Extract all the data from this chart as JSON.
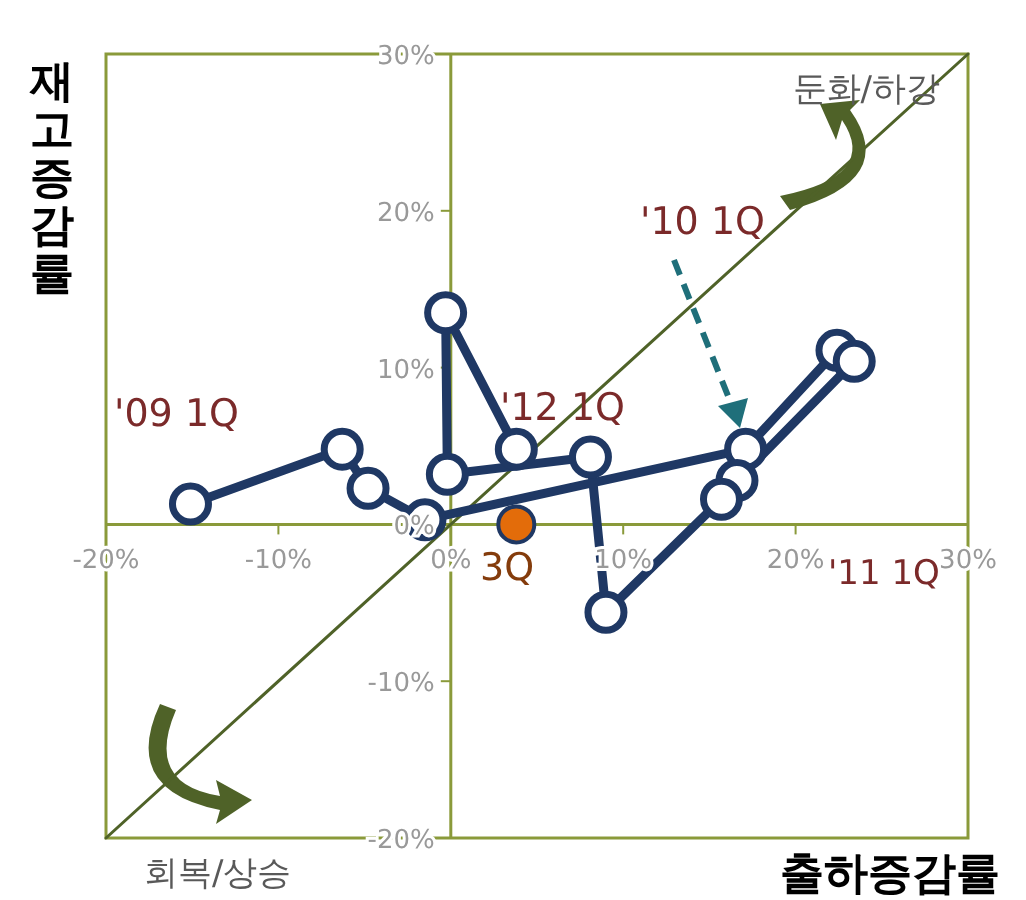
{
  "chart_data": {
    "type": "line",
    "xlabel": "출하증감률",
    "ylabel": "재고증감률",
    "xlim": [
      -20,
      30
    ],
    "ylim": [
      -20,
      30
    ],
    "xticks": [
      {
        "value": -20,
        "label": "-20%"
      },
      {
        "value": -10,
        "label": "-10%"
      },
      {
        "value": 0,
        "label": "0%"
      },
      {
        "value": 10,
        "label": "10%"
      },
      {
        "value": 20,
        "label": "20%"
      },
      {
        "value": 30,
        "label": "30%"
      }
    ],
    "yticks": [
      {
        "value": -20,
        "label": "-20%"
      },
      {
        "value": -10,
        "label": "-10%"
      },
      {
        "value": 0,
        "label": "0%"
      },
      {
        "value": 10,
        "label": "10%"
      },
      {
        "value": 20,
        "label": "20%"
      },
      {
        "value": 30,
        "label": "30%"
      }
    ],
    "grid": false,
    "series": [
      {
        "color": "#1f3864",
        "marker": "circle",
        "x": [
          -15.1,
          -6.3,
          -4.8,
          -1.5,
          17.1,
          22.4,
          23.4,
          16.6,
          15.7,
          9.0,
          8.1,
          -0.2,
          -0.3,
          3.8
        ],
        "values": [
          1.3,
          4.8,
          2.3,
          0.3,
          4.8,
          11.1,
          10.4,
          2.8,
          1.6,
          -5.6,
          4.3,
          3.2,
          13.5,
          4.8
        ]
      },
      {
        "type": "scatter",
        "color": "#e36c0a",
        "marker": "circle",
        "x": [
          3.8
        ],
        "values": [
          0
        ]
      },
      {
        "type": "line",
        "color": "#4f6228",
        "marker": "none",
        "x": [
          -20,
          30
        ],
        "values": [
          -20,
          30
        ]
      }
    ],
    "annotations": [
      "'09 1Q",
      "'10 1Q",
      "'11 1Q",
      "'12 1Q",
      "3Q",
      "둔화/하강",
      "회복/상승"
    ]
  }
}
